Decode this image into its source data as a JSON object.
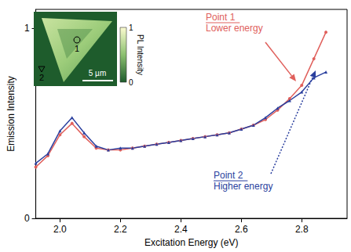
{
  "chart_data": {
    "type": "line",
    "x_label": "Excitation Energy (eV)",
    "y_label": "Emission Intensity",
    "xlim": [
      1.92,
      2.95
    ],
    "ylim": [
      0,
      1.1
    ],
    "xticks": [
      {
        "value": 2.0,
        "label": "2.0"
      },
      {
        "value": 2.2,
        "label": "2.2"
      },
      {
        "value": 2.4,
        "label": "2.4"
      },
      {
        "value": 2.6,
        "label": "2.6"
      },
      {
        "value": 2.8,
        "label": "2.8"
      }
    ],
    "yticks": [
      0,
      1
    ],
    "grid": false,
    "x": [
      1.92,
      1.96,
      2.0,
      2.04,
      2.08,
      2.12,
      2.16,
      2.2,
      2.24,
      2.28,
      2.32,
      2.36,
      2.4,
      2.44,
      2.48,
      2.52,
      2.56,
      2.6,
      2.64,
      2.68,
      2.72,
      2.76,
      2.8,
      2.84,
      2.88
    ],
    "series": [
      {
        "name": "Point 1",
        "color": "#e0605c",
        "marker": "circle",
        "line_style": "solid",
        "values": [
          0.27,
          0.33,
          0.44,
          0.5,
          0.43,
          0.37,
          0.36,
          0.36,
          0.37,
          0.38,
          0.39,
          0.4,
          0.41,
          0.42,
          0.43,
          0.44,
          0.45,
          0.47,
          0.49,
          0.52,
          0.57,
          0.63,
          0.7,
          0.84,
          0.98
        ]
      },
      {
        "name": "Point 2",
        "color": "#2a3f9e",
        "marker": "triangle",
        "line_style": "solid",
        "values": [
          0.29,
          0.34,
          0.46,
          0.53,
          0.45,
          0.38,
          0.36,
          0.37,
          0.37,
          0.38,
          0.39,
          0.4,
          0.41,
          0.42,
          0.43,
          0.44,
          0.45,
          0.47,
          0.49,
          0.53,
          0.58,
          0.62,
          0.665,
          0.74,
          0.77
        ]
      }
    ],
    "annotations": [
      {
        "lines": [
          "Point 1",
          "Lower energy"
        ],
        "color": "#e0605c",
        "line_style": "solid"
      },
      {
        "lines": [
          "Point 2",
          "Higher energy"
        ],
        "color": "#2a3f9e",
        "line_style": "dotted"
      }
    ],
    "inset": {
      "colorbar": {
        "label": "PL Intensity",
        "range": [
          0,
          1
        ],
        "ticks": [
          0,
          1
        ]
      },
      "scale_bar": "5 µm",
      "markers": [
        {
          "label": "1",
          "marker": "circle"
        },
        {
          "label": "2",
          "marker": "triangle"
        }
      ]
    }
  }
}
